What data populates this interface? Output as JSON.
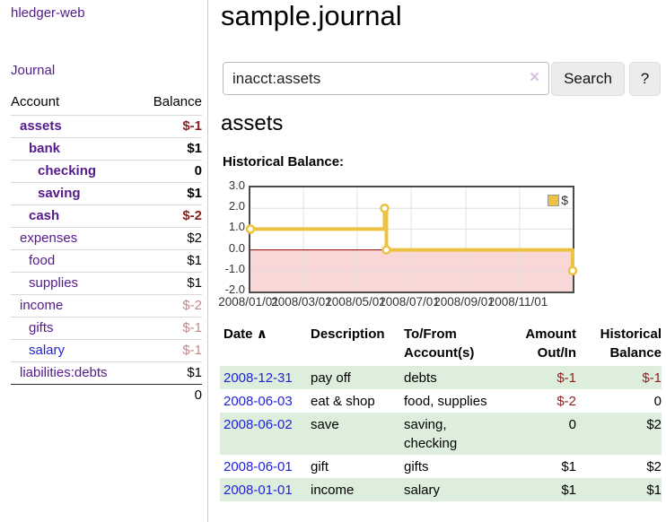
{
  "app": {
    "brand": "hledger-web",
    "nav": {
      "journal": "Journal"
    }
  },
  "header": {
    "title": "sample.journal"
  },
  "search": {
    "value": "inacct:assets",
    "clear_label": "×",
    "button_label": "Search",
    "help_label": "?"
  },
  "sidebar": {
    "header": {
      "account": "Account",
      "balance": "Balance"
    },
    "accounts": [
      {
        "name": "assets",
        "balance": "$-1",
        "depth": 1,
        "bold": true,
        "neg": "strong"
      },
      {
        "name": "bank",
        "balance": "$1",
        "depth": 2,
        "bold": true
      },
      {
        "name": "checking",
        "balance": "0",
        "depth": 3,
        "bold": true
      },
      {
        "name": "saving",
        "balance": "$1",
        "depth": 3,
        "bold": true
      },
      {
        "name": "cash",
        "balance": "$-2",
        "depth": 2,
        "bold": true,
        "neg": "strong"
      },
      {
        "name": "expenses",
        "balance": "$2",
        "depth": 1
      },
      {
        "name": "food",
        "balance": "$1",
        "depth": 2
      },
      {
        "name": "supplies",
        "balance": "$1",
        "depth": 2
      },
      {
        "name": "income",
        "balance": "$-2",
        "depth": 1,
        "neg": "muted"
      },
      {
        "name": "gifts",
        "balance": "$-1",
        "depth": 2,
        "neg": "muted"
      },
      {
        "name": "salary",
        "balance": "$-1",
        "depth": 2,
        "neg": "muted",
        "link": "blue"
      },
      {
        "name": "liabilities:debts",
        "balance": "$1",
        "depth": 1
      }
    ],
    "total": "0"
  },
  "account_page": {
    "heading": "assets",
    "chart_label": "Historical Balance:"
  },
  "chart_data": {
    "type": "line",
    "step": true,
    "title": "Historical Balance",
    "legend": "$",
    "legend_position": "top-right",
    "grid": true,
    "x_range": [
      "2008-01-01",
      "2008-12-31"
    ],
    "ylim": [
      -2,
      3
    ],
    "y_ticks": [
      3.0,
      2.0,
      1.0,
      0.0,
      -1.0,
      -2.0
    ],
    "x_ticks": [
      "2008/01/01",
      "2008/03/01",
      "2008/05/01",
      "2008/07/01",
      "2008/09/01",
      "2008/11/01"
    ],
    "series": [
      {
        "name": "$",
        "color": "#edc240",
        "points": [
          [
            "2008-01-01",
            1
          ],
          [
            "2008-06-01",
            2
          ],
          [
            "2008-06-03",
            0
          ],
          [
            "2008-12-31",
            -1
          ]
        ]
      }
    ],
    "colors": {
      "line": "#edc240",
      "marker_fill": "#ffffff",
      "negative_region": "#fad7d7",
      "zero_line": "#8b0000",
      "gridline": "#e0e0e0",
      "border": "#4a4a4a"
    }
  },
  "register": {
    "columns": [
      "Date",
      "Description",
      "To/From Account(s)",
      "Amount Out/In",
      "Historical Balance"
    ],
    "sort_indicator": "∧",
    "rows": [
      {
        "date": "2008-12-31",
        "description": "pay off",
        "accounts": "debts",
        "amount": "$-1",
        "balance": "$-1",
        "amount_neg": true,
        "balance_neg": true,
        "shade": true
      },
      {
        "date": "2008-06-03",
        "description": "eat & shop",
        "accounts": "food, supplies",
        "amount": "$-2",
        "balance": "0",
        "amount_neg": true,
        "shade": false
      },
      {
        "date": "2008-06-02",
        "description": "save",
        "accounts": "saving, checking",
        "amount": "0",
        "balance": "$2",
        "shade": true
      },
      {
        "date": "2008-06-01",
        "description": "gift",
        "accounts": "gifts",
        "amount": "$1",
        "balance": "$2",
        "shade": false
      },
      {
        "date": "2008-01-01",
        "description": "income",
        "accounts": "salary",
        "amount": "$1",
        "balance": "$1",
        "shade": true
      }
    ]
  },
  "colors": {
    "accent_purple": "#551a8b",
    "link_blue": "#2222dd",
    "negative_strong": "#8e1f1f",
    "negative_muted": "#c48888",
    "row_shade_green": "#ddeedd"
  }
}
